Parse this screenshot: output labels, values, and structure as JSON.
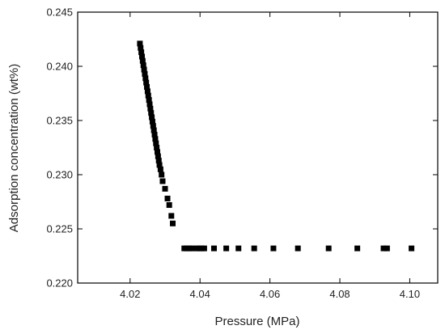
{
  "chart_data": {
    "type": "scatter",
    "title": "",
    "xlabel": "Pressure (MPa)",
    "ylabel": "Adsorption concentration (wt%)",
    "xlim": [
      4.005,
      4.108
    ],
    "ylim": [
      0.22,
      0.245
    ],
    "x_ticks": [
      4.02,
      4.04,
      4.06,
      4.08,
      4.1
    ],
    "x_tick_labels": [
      "4.02",
      "4.04",
      "4.06",
      "4.08",
      "4.10"
    ],
    "y_ticks": [
      0.22,
      0.225,
      0.23,
      0.235,
      0.24,
      0.245
    ],
    "y_tick_labels": [
      "0.220",
      "0.225",
      "0.230",
      "0.235",
      "0.240",
      "0.245"
    ],
    "grid": false,
    "legend": false,
    "marker": "square",
    "marker_color": "#000000",
    "series": [
      {
        "points": [
          [
            4.0228,
            0.2421
          ],
          [
            4.023,
            0.2417
          ],
          [
            4.0232,
            0.2413
          ],
          [
            4.0234,
            0.2409
          ],
          [
            4.0236,
            0.2405
          ],
          [
            4.0238,
            0.2401
          ],
          [
            4.024,
            0.2397
          ],
          [
            4.0242,
            0.2393
          ],
          [
            4.0244,
            0.2389
          ],
          [
            4.0246,
            0.2385
          ],
          [
            4.0248,
            0.2381
          ],
          [
            4.025,
            0.2377
          ],
          [
            4.0252,
            0.2373
          ],
          [
            4.0254,
            0.2369
          ],
          [
            4.0256,
            0.2365
          ],
          [
            4.0258,
            0.2361
          ],
          [
            4.026,
            0.2357
          ],
          [
            4.0262,
            0.2353
          ],
          [
            4.0264,
            0.2349
          ],
          [
            4.0266,
            0.2345
          ],
          [
            4.0268,
            0.2341
          ],
          [
            4.027,
            0.2337
          ],
          [
            4.0272,
            0.2333
          ],
          [
            4.0274,
            0.2329
          ],
          [
            4.0276,
            0.2325
          ],
          [
            4.0278,
            0.2321
          ],
          [
            4.028,
            0.2317
          ],
          [
            4.0282,
            0.2313
          ],
          [
            4.0284,
            0.2309
          ],
          [
            4.0287,
            0.2305
          ],
          [
            4.029,
            0.23
          ],
          [
            4.0293,
            0.2294
          ],
          [
            4.03,
            0.2287
          ],
          [
            4.0307,
            0.2278
          ],
          [
            4.0312,
            0.2272
          ],
          [
            4.0318,
            0.2262
          ],
          [
            4.0322,
            0.2255
          ],
          [
            4.0355,
            0.2232
          ],
          [
            4.0362,
            0.2232
          ],
          [
            4.037,
            0.2232
          ],
          [
            4.0378,
            0.2232
          ],
          [
            4.039,
            0.2232
          ],
          [
            4.0398,
            0.2232
          ],
          [
            4.0405,
            0.2232
          ],
          [
            4.0412,
            0.2232
          ],
          [
            4.044,
            0.2232
          ],
          [
            4.0475,
            0.2232
          ],
          [
            4.051,
            0.2232
          ],
          [
            4.0555,
            0.2232
          ],
          [
            4.061,
            0.2232
          ],
          [
            4.068,
            0.2232
          ],
          [
            4.0768,
            0.2232
          ],
          [
            4.085,
            0.2232
          ],
          [
            4.0925,
            0.2232
          ],
          [
            4.0935,
            0.2232
          ],
          [
            4.1005,
            0.2232
          ]
        ]
      }
    ]
  }
}
